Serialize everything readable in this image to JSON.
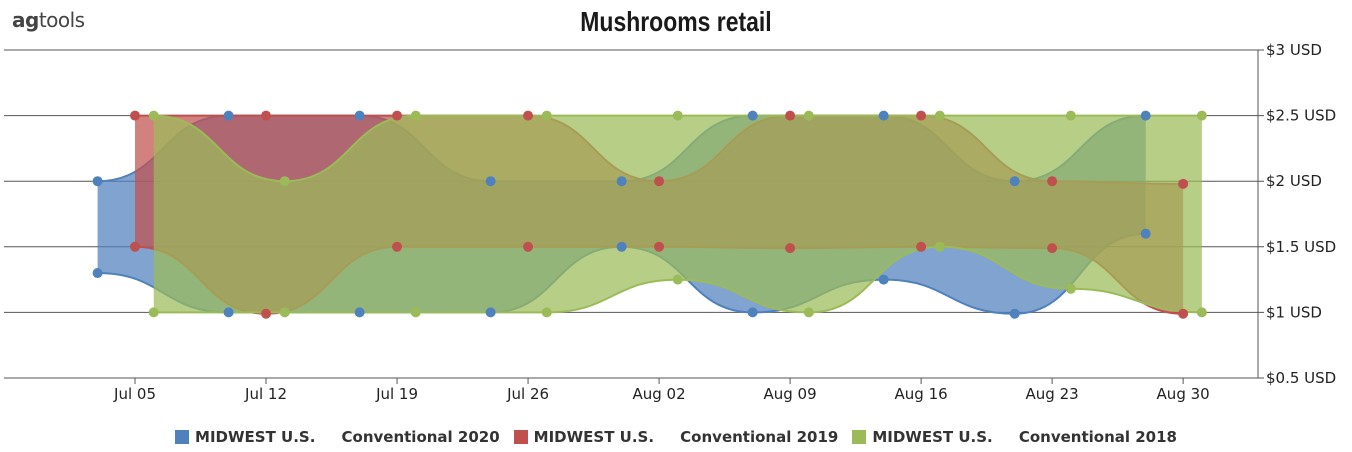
{
  "logo": {
    "prefix": "ag",
    "suffix": "tools"
  },
  "colors": {
    "s2020": "#4f81bd",
    "s2019": "#c0504d",
    "s2018": "#9bbb59"
  },
  "chart_data": {
    "type": "area",
    "title": "Mushrooms retail",
    "x_ticks": [
      "Jul 05",
      "Jul 12",
      "Jul 19",
      "Jul 26",
      "Aug 02",
      "Aug 09",
      "Aug 16",
      "Aug 23",
      "Aug 30"
    ],
    "x_tick_dates": [
      "2020-07-05",
      "2020-07-12",
      "2020-07-19",
      "2020-07-26",
      "2020-08-02",
      "2020-08-09",
      "2020-08-16",
      "2020-08-23",
      "2020-08-30"
    ],
    "x_range": [
      "2020-06-28",
      "2020-09-03"
    ],
    "ylim": [
      0.5,
      3
    ],
    "y_ticks": [
      "$0.5 USD",
      "$1 USD",
      "$1.5 USD",
      "$2 USD",
      "$2.5 USD",
      "$3 USD"
    ],
    "y_tick_values": [
      0.5,
      1,
      1.5,
      2,
      2.5,
      3
    ],
    "y_axis_side": "right",
    "grid": true,
    "legend_position": "bottom",
    "series": [
      {
        "name": "MIDWEST U.S.     Conventional 2020",
        "color_key": "s2020",
        "x": [
          "2020-07-03",
          "2020-07-10",
          "2020-07-17",
          "2020-07-24",
          "2020-07-31",
          "2020-08-07",
          "2020-08-14",
          "2020-08-21",
          "2020-08-28"
        ],
        "high": [
          2.0,
          2.5,
          2.5,
          2.0,
          2.0,
          2.5,
          2.5,
          2.0,
          2.5
        ],
        "low": [
          1.3,
          1.0,
          1.0,
          1.0,
          1.5,
          1.0,
          1.25,
          0.99,
          1.6
        ]
      },
      {
        "name": "MIDWEST U.S.     Conventional 2019",
        "color_key": "s2019",
        "x": [
          "2020-07-05",
          "2020-07-12",
          "2020-07-19",
          "2020-07-26",
          "2020-08-02",
          "2020-08-09",
          "2020-08-16",
          "2020-08-23",
          "2020-08-30"
        ],
        "high": [
          2.5,
          2.5,
          2.5,
          2.5,
          2.0,
          2.5,
          2.5,
          2.0,
          1.98
        ],
        "low": [
          1.5,
          0.99,
          1.5,
          1.5,
          1.5,
          1.49,
          1.5,
          1.49,
          0.99
        ]
      },
      {
        "name": "MIDWEST U.S.     Conventional 2018",
        "color_key": "s2018",
        "x": [
          "2020-07-06",
          "2020-07-13",
          "2020-07-20",
          "2020-07-27",
          "2020-08-03",
          "2020-08-10",
          "2020-08-17",
          "2020-08-24",
          "2020-08-31"
        ],
        "high": [
          2.5,
          2.0,
          2.5,
          2.5,
          2.5,
          2.5,
          2.5,
          2.5,
          2.5
        ],
        "low": [
          1.0,
          1.0,
          1.0,
          1.0,
          1.25,
          1.0,
          1.5,
          1.18,
          1.0
        ]
      }
    ]
  }
}
